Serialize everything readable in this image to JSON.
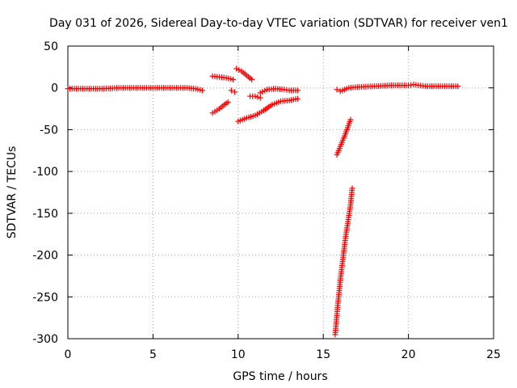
{
  "chart_data": {
    "type": "scatter",
    "title": "Day 031 of 2026, Sidereal Day-to-day VTEC variation (SDTVAR) for receiver ven1",
    "xlabel": "GPS time / hours",
    "ylabel": "SDTVAR / TECUs",
    "xlim": [
      0,
      25
    ],
    "ylim": [
      -300,
      50
    ],
    "xticks": [
      "0",
      "5",
      "10",
      "15",
      "20",
      "25"
    ],
    "yticks": [
      "50",
      "0",
      "-50",
      "-100",
      "-150",
      "-200",
      "-250",
      "-300"
    ],
    "grid": true,
    "marker": "+",
    "color": "#ff0000",
    "series": [
      {
        "x": [
          0.0,
          1.0,
          2.0,
          3.0,
          4.0,
          5.0,
          6.0,
          7.0,
          7.5,
          7.9
        ],
        "y": [
          -1,
          -1,
          -1,
          0,
          0,
          0,
          0,
          0,
          -1,
          -3
        ]
      },
      {
        "x": [
          8.5,
          8.9,
          9.3,
          9.7
        ],
        "y": [
          14,
          13,
          12,
          10
        ]
      },
      {
        "x": [
          9.6,
          9.8
        ],
        "y": [
          -3,
          -5
        ]
      },
      {
        "x": [
          8.5,
          8.9,
          9.2,
          9.4
        ],
        "y": [
          -30,
          -25,
          -20,
          -17
        ]
      },
      {
        "x": [
          9.9,
          10.2,
          10.5,
          10.8
        ],
        "y": [
          23,
          20,
          15,
          10
        ]
      },
      {
        "x": [
          10.7,
          11.0,
          11.3
        ],
        "y": [
          -10,
          -10,
          -12
        ]
      },
      {
        "x": [
          11.3,
          11.7,
          12.2,
          12.7,
          13.0,
          13.5
        ],
        "y": [
          -6,
          -2,
          -1,
          -2,
          -3,
          -3
        ]
      },
      {
        "x": [
          10.0,
          10.5,
          11.0,
          11.5,
          12.0,
          12.5,
          13.0,
          13.5
        ],
        "y": [
          -40,
          -36,
          -33,
          -27,
          -20,
          -16,
          -15,
          -13
        ]
      },
      {
        "x": [
          15.8,
          16.0,
          16.5,
          17.0,
          18.0,
          19.0,
          20.0,
          20.3,
          21.0,
          22.0,
          22.9
        ],
        "y": [
          -2,
          -4,
          0,
          1,
          2,
          3,
          3,
          4,
          2,
          2,
          2
        ]
      },
      {
        "x": [
          15.8,
          16.0,
          16.3,
          16.6
        ],
        "y": [
          -80,
          -70,
          -55,
          -38
        ]
      },
      {
        "x": [
          15.7,
          15.85,
          16.0,
          16.15,
          16.3,
          16.45,
          16.6,
          16.7
        ],
        "y": [
          -295,
          -260,
          -230,
          -205,
          -180,
          -160,
          -140,
          -120
        ]
      }
    ]
  }
}
